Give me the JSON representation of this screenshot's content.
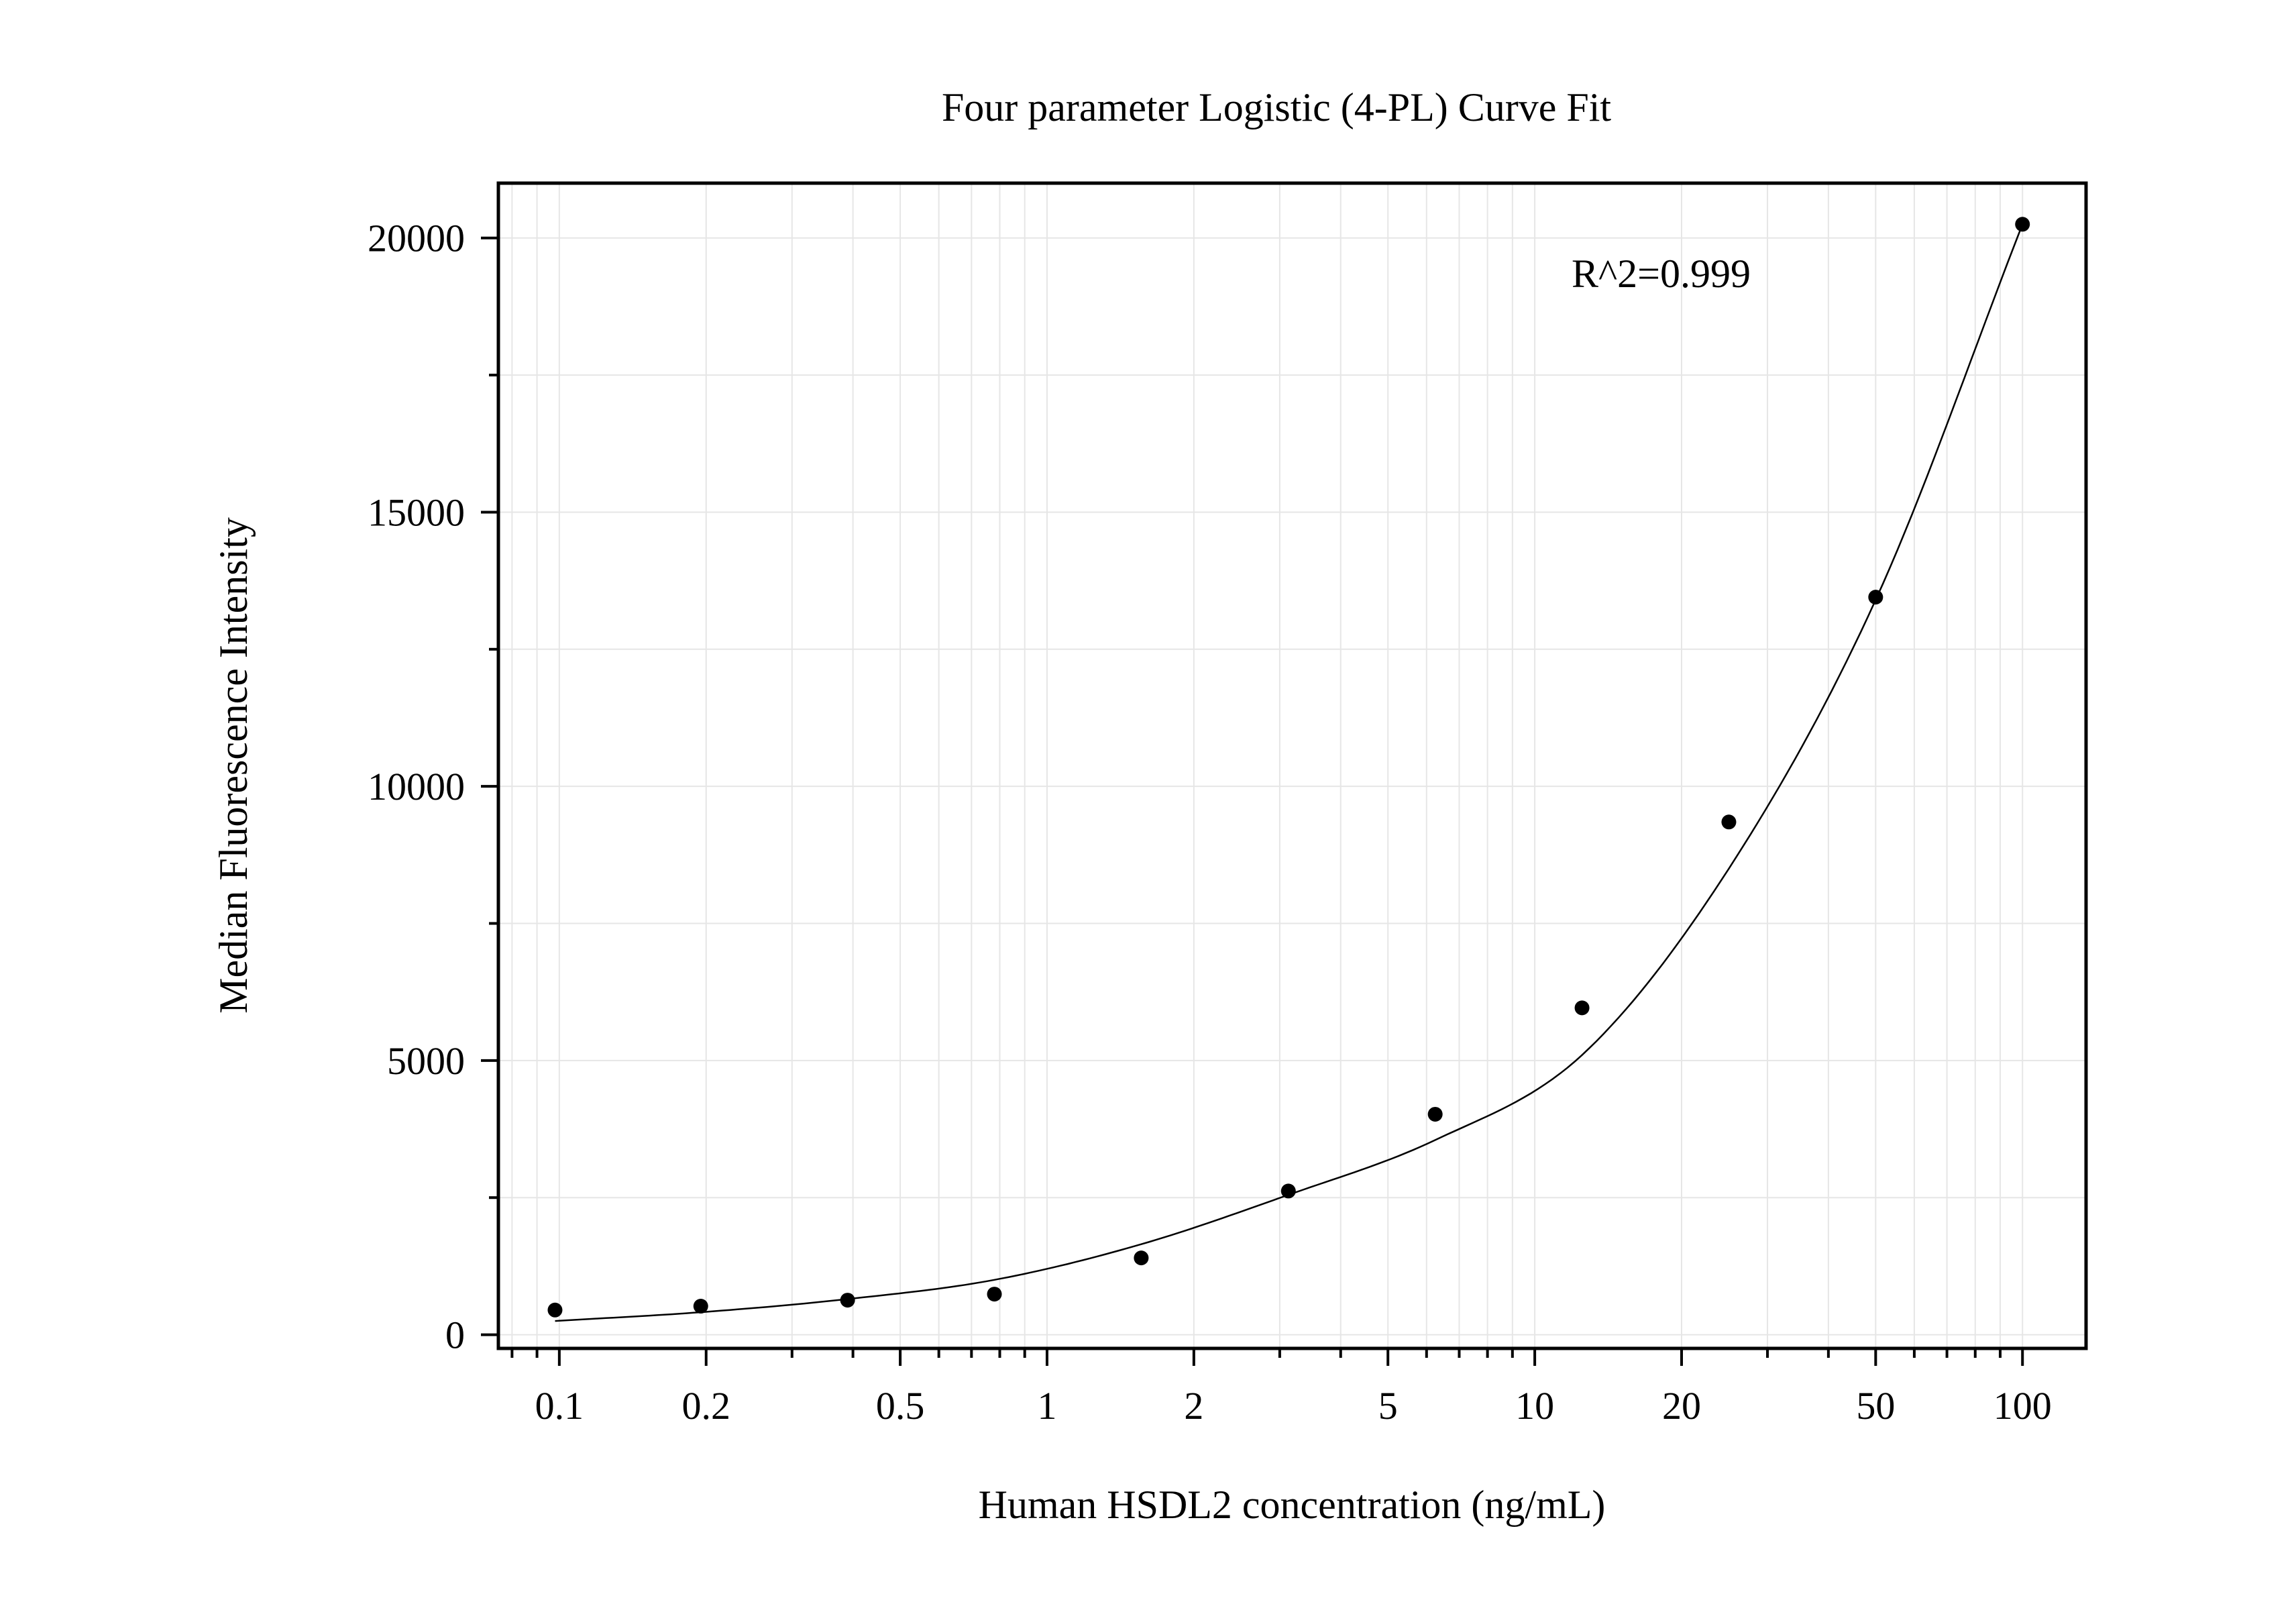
{
  "chart_data": {
    "type": "scatter",
    "title": "Four parameter Logistic (4-PL) Curve Fit",
    "xlabel": "Human HSDL2 concentration (ng/mL)",
    "ylabel": "Median Fluorescence Intensity",
    "xscale": "log",
    "xlim": [
      0.075,
      135
    ],
    "ylim": [
      -250,
      21000
    ],
    "grid": true,
    "legend": "none",
    "x_ticks": [
      0.1,
      0.2,
      0.5,
      1,
      2,
      5,
      10,
      20,
      50,
      100
    ],
    "x_tick_labels": [
      "0.1",
      "0.2",
      "0.5",
      "1",
      "2",
      "5",
      "10",
      "20",
      "50",
      "100"
    ],
    "y_ticks": [
      0,
      5000,
      10000,
      15000,
      20000
    ],
    "y_tick_labels": [
      "0",
      "5000",
      "10000",
      "15000",
      "20000"
    ],
    "annotation": "R^2=0.999",
    "series": [
      {
        "kind": "points",
        "x": [
          0.098,
          0.195,
          0.39,
          0.78,
          1.56,
          3.125,
          6.25,
          12.5,
          25,
          50,
          100
        ],
        "y": [
          450,
          520,
          630,
          740,
          1400,
          2620,
          4020,
          5960,
          9350,
          13450,
          20250
        ]
      },
      {
        "kind": "fit-curve",
        "x": [
          0.098,
          0.195,
          0.39,
          0.78,
          1.56,
          3.125,
          6.25,
          12.5,
          25,
          50,
          100
        ],
        "y": [
          250,
          410,
          650,
          1000,
          1650,
          2550,
          3550,
          5100,
          8500,
          13400,
          20250
        ]
      }
    ],
    "colors": {
      "points": "#000000",
      "curve": "#000000",
      "grid": "#e6e6e6",
      "frame": "#000000"
    }
  }
}
